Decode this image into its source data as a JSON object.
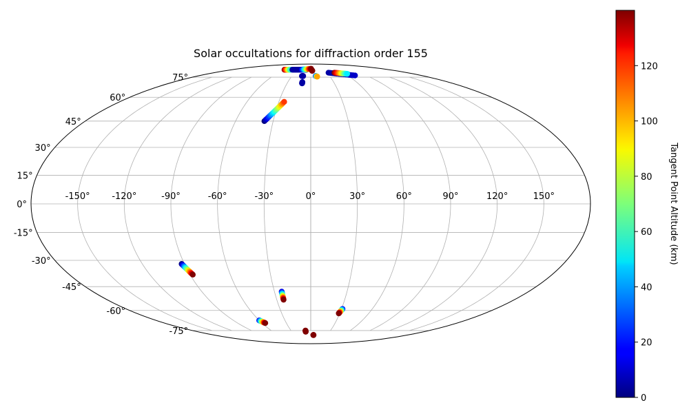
{
  "chart_data": {
    "type": "scatter",
    "projection": "mollweide",
    "title": "Solar occultations for diffraction order 155",
    "xlabel": "",
    "ylabel": "",
    "grid": true,
    "longitude_ticks": [
      "-150°",
      "-120°",
      "-90°",
      "-60°",
      "-30°",
      "0°",
      "30°",
      "60°",
      "90°",
      "120°",
      "150°"
    ],
    "longitude_tick_values": [
      -150,
      -120,
      -90,
      -60,
      -30,
      0,
      30,
      60,
      90,
      120,
      150
    ],
    "latitude_ticks": [
      "-75°",
      "-60°",
      "-45°",
      "-30°",
      "-15°",
      "0°",
      "15°",
      "30°",
      "45°",
      "60°",
      "75°"
    ],
    "latitude_tick_values": [
      -75,
      -60,
      -45,
      -30,
      -15,
      0,
      15,
      30,
      45,
      60,
      75
    ],
    "colorbar": {
      "label": "Tangent Point Altitude (km)",
      "colormap": "jet",
      "range": [
        0,
        140
      ],
      "ticks": [
        0,
        20,
        40,
        60,
        80,
        100,
        120
      ],
      "tick_labels": [
        "0",
        "20",
        "40",
        "60",
        "80",
        "100",
        "120"
      ]
    },
    "tracks": [
      {
        "lon_start": -92,
        "lat_start": -32,
        "alt_start": 0,
        "lon_end": -88,
        "lat_end": -38,
        "alt_end": 140
      },
      {
        "lon_start": -37,
        "lat_start": 45,
        "alt_start": 0,
        "lon_end": -25,
        "lat_end": 57,
        "alt_end": 115
      },
      {
        "lon_start": -24,
        "lat_start": -48,
        "alt_start": 10,
        "lon_end": -24,
        "lat_end": -53,
        "alt_end": 140
      },
      {
        "lon_start": -60,
        "lat_start": -67,
        "alt_start": 15,
        "lon_end": -56,
        "lat_end": -69,
        "alt_end": 140
      },
      {
        "lon_start": 31,
        "lat_start": -59,
        "alt_start": 15,
        "lon_end": 29,
        "lat_end": -62,
        "alt_end": 140
      },
      {
        "lon_start": -8,
        "lat_start": -75,
        "alt_start": 140,
        "lon_end": -8,
        "lat_end": -76,
        "alt_end": 140
      },
      {
        "lon_start": 5,
        "lat_start": -79,
        "alt_start": 140,
        "lon_end": 5,
        "lat_end": -79,
        "alt_end": 140
      },
      {
        "lon_start": -11,
        "lat_start": 70,
        "alt_start": 5,
        "lon_end": -11,
        "lat_end": 71,
        "alt_end": 5
      },
      {
        "lon_start": -14,
        "lat_start": 76,
        "alt_start": 5,
        "lon_end": -12,
        "lat_end": 76,
        "alt_end": 5
      },
      {
        "lon_start": 33,
        "lat_start": 79,
        "alt_start": 5,
        "lon_end": 72,
        "lat_end": 76.5,
        "alt_end": 10
      },
      {
        "lon_start": 44,
        "lat_start": 79,
        "alt_start": 140,
        "lon_end": 64,
        "lat_end": 78,
        "alt_end": 50
      },
      {
        "lon_start": -60,
        "lat_start": 82,
        "alt_start": 140,
        "lon_end": -46,
        "lat_end": 82,
        "alt_end": 60
      },
      {
        "lon_start": -42,
        "lat_start": 82,
        "alt_start": 5,
        "lon_end": -10,
        "lat_end": 82,
        "alt_end": 5
      },
      {
        "lon_start": -22,
        "lat_start": 82,
        "alt_start": 5,
        "lon_end": 1,
        "lat_end": 83,
        "alt_end": 140
      },
      {
        "lon_start": 3,
        "lat_start": 81,
        "alt_start": 140,
        "lon_end": 3,
        "lat_end": 81,
        "alt_end": 140
      },
      {
        "lon_start": 8,
        "lat_start": 76,
        "alt_start": 5,
        "lon_end": 10,
        "lat_end": 75.5,
        "alt_end": 100
      }
    ]
  }
}
